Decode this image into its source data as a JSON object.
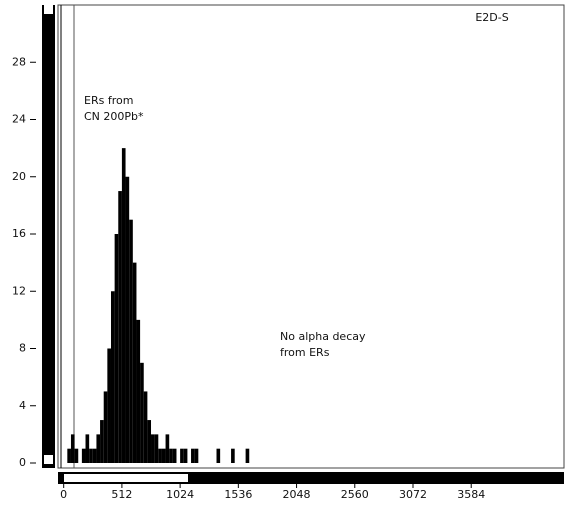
{
  "chart_data": {
    "type": "histogram",
    "title": "E2D-S",
    "annotations": [
      [
        "ERs from",
        "CN 200Pb*"
      ],
      [
        "No alpha decay",
        "from ERs"
      ]
    ],
    "bins": [
      0,
      32,
      64,
      96,
      128,
      160,
      192,
      224,
      256,
      288,
      320,
      352,
      384,
      416,
      448,
      480,
      512,
      544,
      576,
      608,
      640,
      672,
      704,
      736,
      768,
      800,
      832,
      864,
      896,
      928,
      960,
      992,
      1024,
      1056,
      1088,
      1120,
      1152,
      1184,
      1216,
      1248,
      1280,
      1312,
      1344,
      1376,
      1408,
      1440,
      1472,
      1504,
      1536,
      1568,
      1600,
      1632,
      1664,
      1696,
      1728,
      1760,
      1792,
      1824,
      1856,
      1888,
      1920,
      1952,
      1984,
      2016,
      2048
    ],
    "values": [
      0,
      1,
      2,
      1,
      0,
      1,
      2,
      1,
      1,
      2,
      3,
      5,
      8,
      12,
      16,
      19,
      22,
      20,
      17,
      14,
      10,
      7,
      5,
      3,
      2,
      2,
      1,
      1,
      2,
      1,
      1,
      0,
      1,
      1,
      0,
      1,
      1,
      0,
      0,
      0,
      0,
      0,
      1,
      0,
      0,
      0,
      1,
      0,
      0,
      0,
      1,
      0,
      0,
      0,
      0,
      0,
      0,
      0,
      0,
      0,
      0,
      0,
      0,
      0
    ],
    "color": "#000000",
    "xlim": [
      -50,
      4400
    ],
    "xticks": [
      0,
      512,
      1024,
      1536,
      2048,
      2560,
      3072,
      3584
    ],
    "ylim": [
      0,
      32
    ],
    "yticks": [
      0,
      4,
      8,
      12,
      16,
      20,
      24,
      28
    ]
  }
}
